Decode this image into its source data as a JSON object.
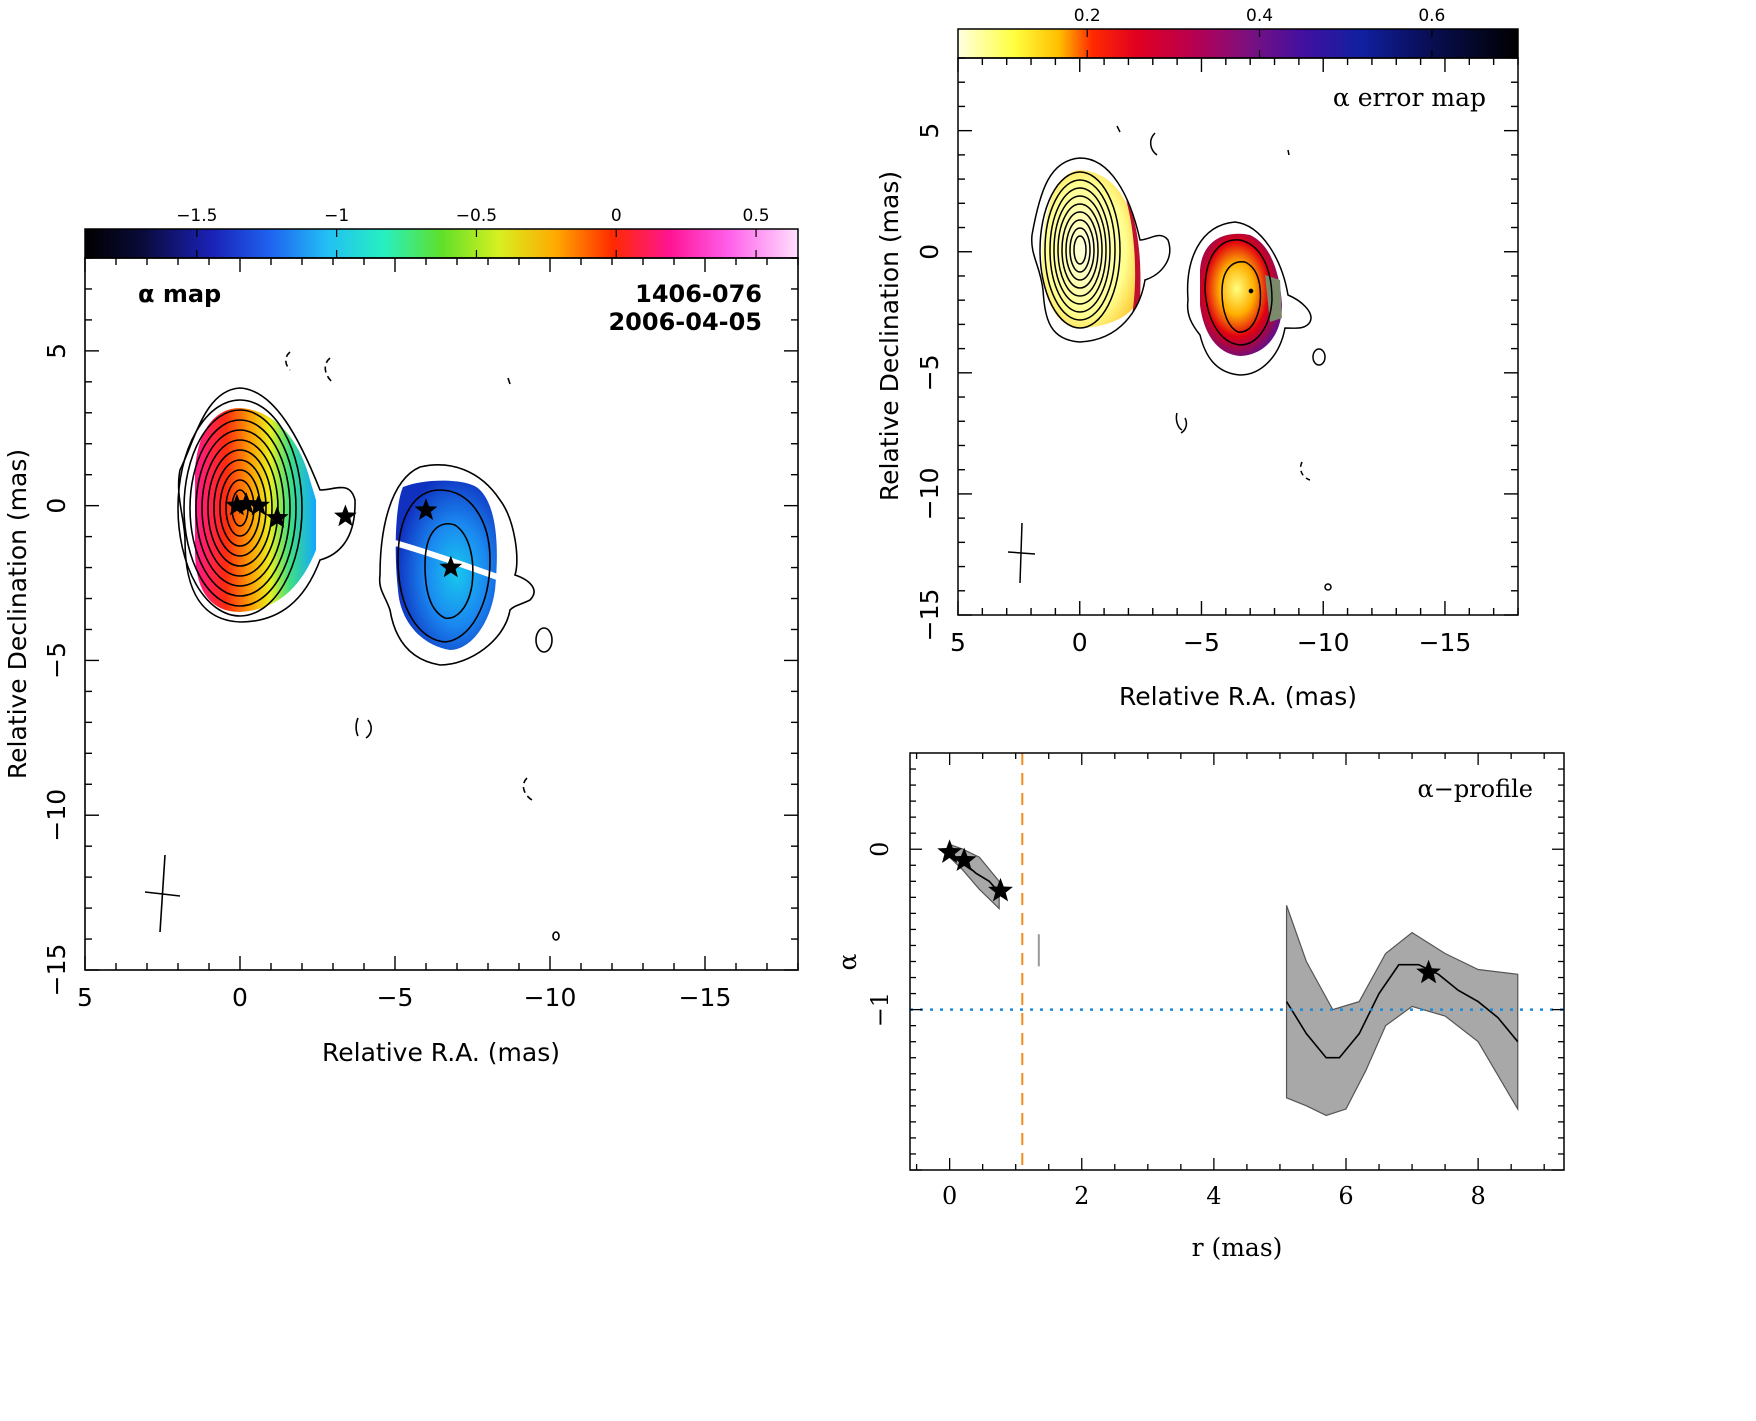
{
  "chart_data": [
    {
      "type": "heatmap",
      "panel": "alpha-map",
      "title": "α map",
      "source": "1406-076",
      "date": "2006-04-05",
      "xlabel": "Relative R.A. (mas)",
      "ylabel": "Relative Declination (mas)",
      "xlim": [
        5,
        -18
      ],
      "ylim": [
        -15,
        8
      ],
      "xticks": [
        5,
        0,
        -5,
        -10,
        -15
      ],
      "yticks": [
        5,
        0,
        -5,
        -10,
        -15
      ],
      "colorbar": {
        "range": [
          -1.9,
          0.65
        ],
        "ticks": [
          -1.5,
          -1,
          -0.5,
          0,
          0.5
        ],
        "tick_labels": [
          "−1.5",
          "−1",
          "−0.5",
          "0",
          "0.5"
        ],
        "colormap": "rainbow"
      },
      "stars": [
        [
          0.1,
          0.0
        ],
        [
          -0.2,
          0.05
        ],
        [
          -0.6,
          0.0
        ],
        [
          -1.2,
          -0.4
        ],
        [
          -3.4,
          -0.35
        ],
        [
          -6.0,
          -0.15
        ],
        [
          -6.8,
          -2.0
        ]
      ]
    },
    {
      "type": "heatmap",
      "panel": "alpha-error-map",
      "title": "α error map",
      "xlabel": "Relative R.A. (mas)",
      "ylabel": "Relative Declination (mas)",
      "xlim": [
        5,
        -18
      ],
      "ylim": [
        -15,
        8
      ],
      "xticks": [
        5,
        0,
        -5,
        -10,
        -15
      ],
      "yticks": [
        5,
        0,
        -5,
        -10,
        -15
      ],
      "colorbar": {
        "range": [
          0.05,
          0.7
        ],
        "ticks": [
          0.2,
          0.4,
          0.6
        ],
        "tick_labels": [
          "0.2",
          "0.4",
          "0.6"
        ],
        "colormap": "yellow-red-purple-black"
      }
    },
    {
      "type": "line",
      "panel": "alpha-profile",
      "title": "α−profile",
      "xlabel": "r (mas)",
      "ylabel": "α",
      "xlim": [
        -0.6,
        9.3
      ],
      "ylim": [
        -2.0,
        0.6
      ],
      "xticks": [
        0,
        2,
        4,
        6,
        8
      ],
      "yticks": [
        0,
        -1
      ],
      "reference_line_alpha": -1.0,
      "core_boundary_r": 1.1,
      "series": [
        {
          "x": [
            0,
            0.2,
            0.4,
            0.6,
            0.75
          ],
          "y": [
            -0.02,
            -0.08,
            -0.15,
            -0.2,
            -0.27
          ]
        },
        {
          "x": [
            5.1,
            5.4,
            5.7,
            5.9,
            6.2,
            6.5,
            6.8,
            7.1,
            7.4,
            7.7,
            8.0,
            8.3,
            8.6
          ],
          "y": [
            -0.95,
            -1.15,
            -1.3,
            -1.3,
            -1.15,
            -0.9,
            -0.72,
            -0.72,
            -0.78,
            -0.88,
            -0.95,
            -1.05,
            -1.2
          ]
        }
      ],
      "band_upper": [
        [
          0,
          0.03
        ],
        [
          0.2,
          0.0
        ],
        [
          0.45,
          -0.05
        ],
        [
          0.75,
          -0.2
        ],
        [
          5.1,
          -0.35
        ],
        [
          5.4,
          -0.7
        ],
        [
          5.8,
          -1.0
        ],
        [
          6.2,
          -0.95
        ],
        [
          6.6,
          -0.65
        ],
        [
          7.0,
          -0.52
        ],
        [
          7.5,
          -0.65
        ],
        [
          8.0,
          -0.75
        ],
        [
          8.6,
          -0.78
        ]
      ],
      "band_lower": [
        [
          0,
          -0.05
        ],
        [
          0.2,
          -0.13
        ],
        [
          0.45,
          -0.25
        ],
        [
          0.75,
          -0.37
        ],
        [
          5.1,
          -1.55
        ],
        [
          5.4,
          -1.6
        ],
        [
          5.7,
          -1.66
        ],
        [
          6.0,
          -1.62
        ],
        [
          6.3,
          -1.38
        ],
        [
          6.6,
          -1.1
        ],
        [
          7.0,
          -0.98
        ],
        [
          7.5,
          -1.04
        ],
        [
          8.0,
          -1.2
        ],
        [
          8.6,
          -1.62
        ]
      ],
      "stars": [
        [
          0.0,
          -0.02
        ],
        [
          0.22,
          -0.07
        ],
        [
          0.77,
          -0.26
        ],
        [
          7.25,
          -0.77
        ]
      ]
    }
  ]
}
